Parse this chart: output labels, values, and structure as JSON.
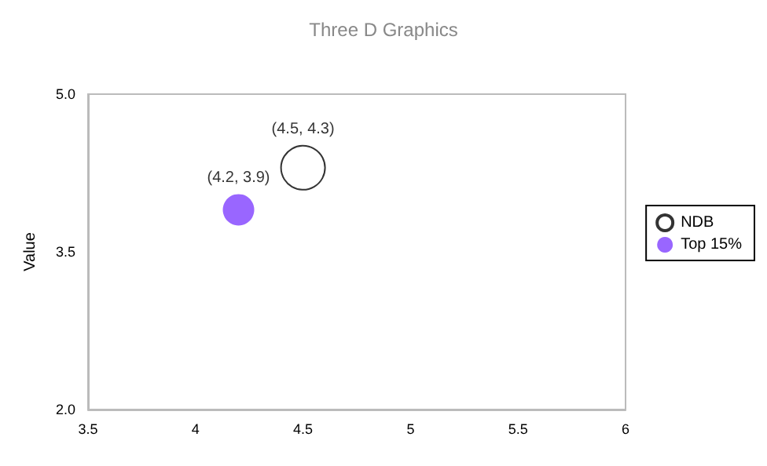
{
  "chart_data": {
    "type": "bubble",
    "subtitle": "Three D Graphics",
    "ylabel": "Value",
    "series": [
      {
        "name": "NDB",
        "color": "#ffffff",
        "x": [
          4.5
        ],
        "values": [
          4.3
        ],
        "sizes": [
          1
        ],
        "value_labels": [
          "(4.5, 4.3)"
        ]
      },
      {
        "name": "Top 15%",
        "color": "#8040ff",
        "x": [
          4.2
        ],
        "values": [
          3.9
        ],
        "sizes": [
          0.51
        ],
        "value_labels": [
          "(4.2, 3.9)"
        ]
      }
    ],
    "xlim": [
      3.5,
      6
    ],
    "xticks": [
      3.5,
      4,
      4.5,
      5,
      5.5,
      6
    ],
    "ylim": [
      2,
      5
    ],
    "yticks": [
      {
        "value": 2,
        "label": "2.0"
      },
      {
        "value": 3.5,
        "label": "3.5"
      },
      {
        "value": 5,
        "label": "5.0"
      }
    ],
    "grid": false,
    "legend": "right"
  }
}
